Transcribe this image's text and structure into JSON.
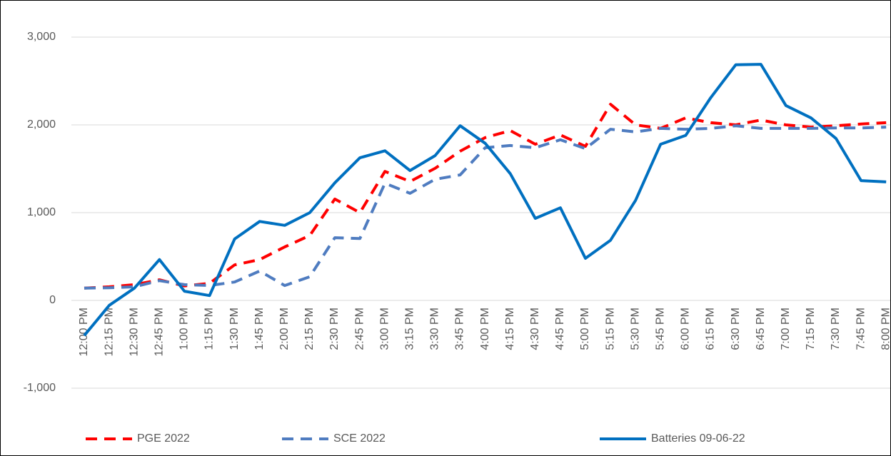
{
  "chart_data": {
    "type": "line",
    "categories": [
      "12:00 PM",
      "12:15 PM",
      "12:30 PM",
      "12:45 PM",
      "1:00 PM",
      "1:15 PM",
      "1:30 PM",
      "1:45 PM",
      "2:00 PM",
      "2:15 PM",
      "2:30 PM",
      "2:45 PM",
      "3:00 PM",
      "3:15 PM",
      "3:30 PM",
      "3:45 PM",
      "4:00 PM",
      "4:15 PM",
      "4:30 PM",
      "4:45 PM",
      "5:00 PM",
      "5:15 PM",
      "5:30 PM",
      "5:45 PM",
      "6:00 PM",
      "6:15 PM",
      "6:30 PM",
      "6:45 PM",
      "7:00 PM",
      "7:15 PM",
      "7:30 PM",
      "7:45 PM",
      "8:00 PM"
    ],
    "series": [
      {
        "name": "PGE 2022",
        "color": "#ff0000",
        "dashed": true,
        "values": [
          140,
          155,
          180,
          235,
          165,
          195,
          405,
          465,
          610,
          740,
          1155,
          1000,
          1470,
          1355,
          1505,
          1700,
          1855,
          1935,
          1780,
          1885,
          1755,
          2235,
          2000,
          1960,
          2080,
          2025,
          2000,
          2055,
          2000,
          1975,
          1990,
          2010,
          2025
        ]
      },
      {
        "name": "SCE 2022",
        "color": "#4f7cc0",
        "dashed": true,
        "values": [
          140,
          145,
          155,
          225,
          180,
          170,
          210,
          335,
          170,
          270,
          715,
          705,
          1335,
          1220,
          1380,
          1430,
          1740,
          1765,
          1740,
          1830,
          1730,
          1950,
          1920,
          1960,
          1950,
          1960,
          1990,
          1960,
          1960,
          1960,
          1965,
          1965,
          1975
        ]
      },
      {
        "name": "Batteries 09-06-22",
        "color": "#0070c0",
        "dashed": false,
        "values": [
          -400,
          -55,
          140,
          465,
          105,
          55,
          700,
          900,
          855,
          1000,
          1340,
          1625,
          1705,
          1480,
          1650,
          1990,
          1790,
          1445,
          935,
          1055,
          480,
          685,
          1140,
          1780,
          1880,
          2310,
          2685,
          2690,
          2220,
          2080,
          1845,
          1365,
          1350
        ]
      }
    ],
    "ylim": [
      -1000,
      3000
    ],
    "yticks": [
      {
        "value": -1000,
        "label": "-1,000"
      },
      0,
      {
        "value": 1000,
        "label": "1,000"
      },
      {
        "value": 2000,
        "label": "2,000"
      },
      {
        "value": 3000,
        "label": "3,000"
      }
    ],
    "grid": true,
    "legend": "bottom"
  }
}
